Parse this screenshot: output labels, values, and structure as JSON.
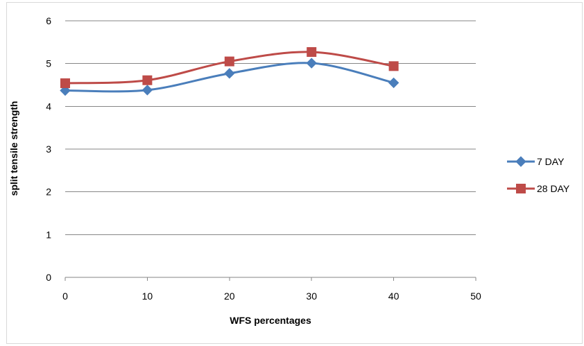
{
  "chart_data": {
    "type": "line",
    "title": "",
    "xlabel": "WFS percentages",
    "ylabel": "split tensile strength",
    "xlim": [
      0,
      50
    ],
    "ylim": [
      0,
      6
    ],
    "x_ticks": [
      0,
      10,
      20,
      30,
      40,
      50
    ],
    "y_ticks": [
      0,
      1,
      2,
      3,
      4,
      5,
      6
    ],
    "x_tick_labels": [
      "0",
      "10",
      "20",
      "30",
      "40",
      "50"
    ],
    "y_tick_labels": [
      "0",
      "1",
      "2",
      "3",
      "4",
      "5",
      "6"
    ],
    "grid": "horizontal",
    "smooth": true,
    "legend": "right",
    "x": [
      0,
      10,
      20,
      30,
      40
    ],
    "series": [
      {
        "name": "7 DAY",
        "values": [
          4.37,
          4.38,
          4.77,
          5.01,
          4.55
        ],
        "color": "#4a7ebb",
        "marker": "diamond"
      },
      {
        "name": "28 DAY",
        "values": [
          4.54,
          4.61,
          5.05,
          5.27,
          4.94
        ],
        "color": "#be4b48",
        "marker": "square"
      }
    ]
  }
}
